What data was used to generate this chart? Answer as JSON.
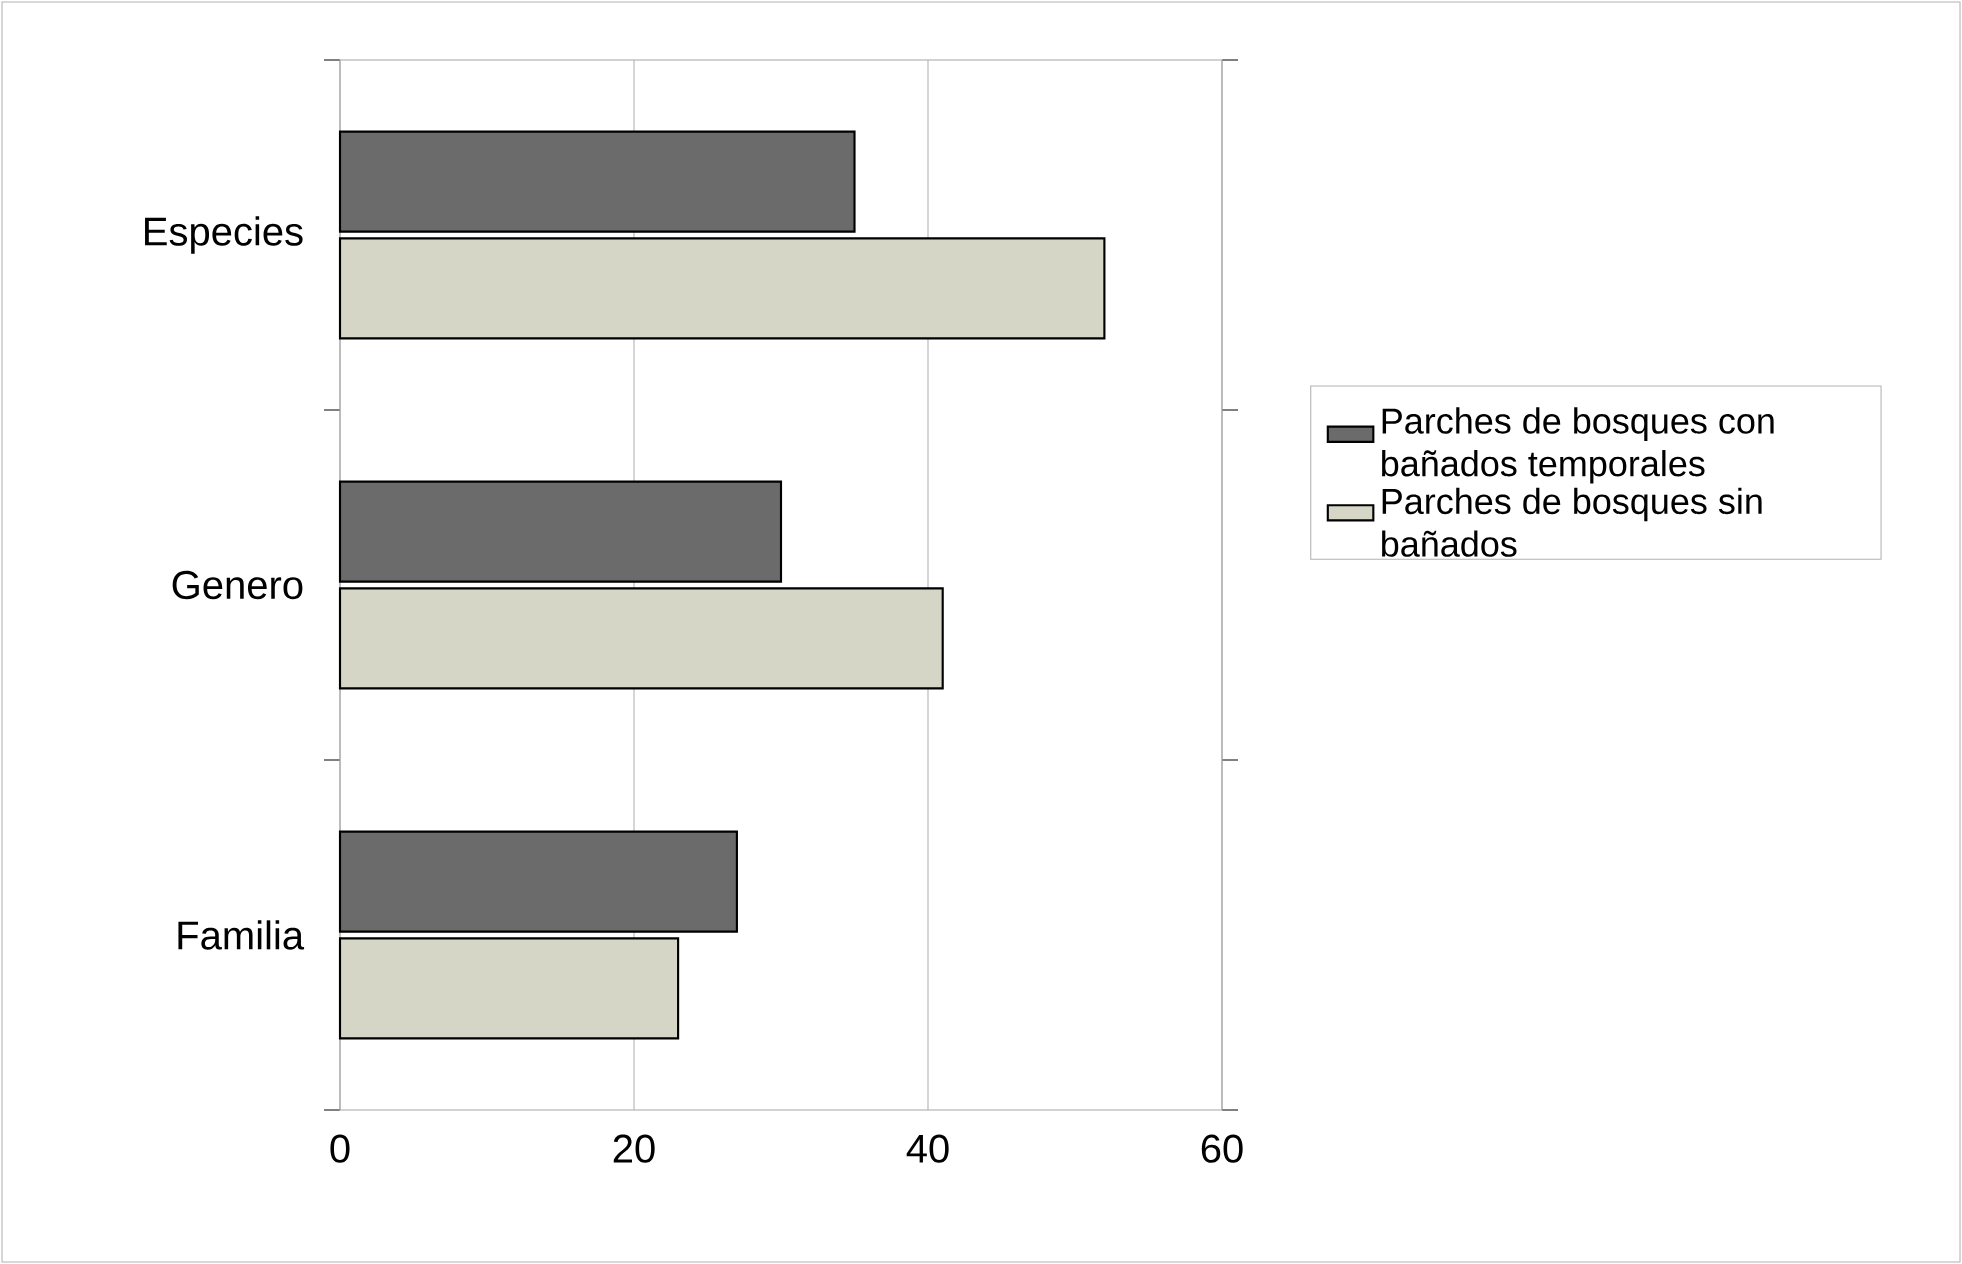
{
  "chart_data": {
    "type": "bar",
    "orientation": "horizontal",
    "categories": [
      "Especies",
      "Genero",
      "Familia"
    ],
    "series": [
      {
        "name": "Parches de bosques con bañados temporales",
        "color": "#6b6b6b",
        "values": [
          35,
          30,
          27
        ]
      },
      {
        "name": "Parches de bosques sin bañados",
        "color": "#d6d6c6",
        "values": [
          52,
          41,
          23
        ]
      }
    ],
    "xlim": [
      0,
      60
    ],
    "xticks": [
      0,
      20,
      40,
      60
    ],
    "grid": "x",
    "legend": "right"
  }
}
